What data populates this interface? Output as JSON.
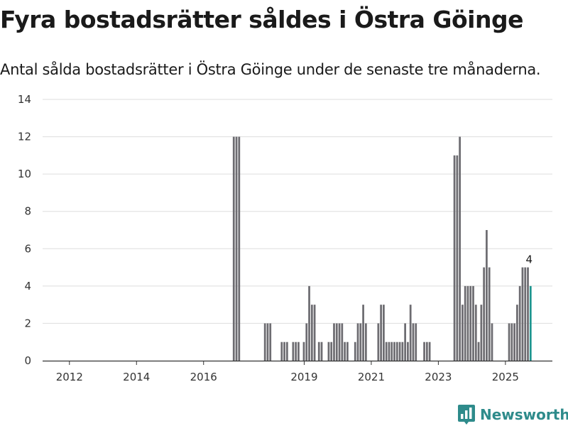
{
  "header": {
    "title": "Fyra bostadsrätter såldes i Östra Göinge",
    "subtitle": "Antal sålda bostadsrätter i Östra Göinge under de senaste tre månaderna."
  },
  "brand": {
    "name": "Newsworthy",
    "color": "#2e8b8b",
    "icon": "bar-chart-icon"
  },
  "chart_data": {
    "type": "bar",
    "title": "Fyra bostadsrätter såldes i Östra Göinge",
    "subtitle": "Antal sålda bostadsrätter i Östra Göinge under de senaste tre månaderna.",
    "xlabel": "",
    "ylabel": "",
    "ylim": [
      0,
      14
    ],
    "yticks": [
      0,
      2,
      4,
      6,
      8,
      10,
      12,
      14
    ],
    "xlim": [
      2011.2,
      2026.4
    ],
    "xticks": [
      {
        "value": 2012,
        "label": "2012"
      },
      {
        "value": 2014,
        "label": "2014"
      },
      {
        "value": 2016,
        "label": "2016"
      },
      {
        "value": 2019,
        "label": "2019"
      },
      {
        "value": 2021,
        "label": "2021"
      },
      {
        "value": 2023,
        "label": "2023"
      },
      {
        "value": 2025,
        "label": "2025"
      }
    ],
    "bar_width": 0.075,
    "colors": {
      "default": "#6d6c71",
      "highlight": "#1e9690"
    },
    "grid": true,
    "highlight_label": "4",
    "series": [
      {
        "name": "Antal sålda bostadsrätter",
        "x": [
          2016.9,
          2016.98,
          2017.06,
          2017.83,
          2017.91,
          2017.99,
          2018.33,
          2018.41,
          2018.49,
          2018.67,
          2018.75,
          2018.83,
          2018.99,
          2019.07,
          2019.15,
          2019.23,
          2019.31,
          2019.44,
          2019.52,
          2019.73,
          2019.81,
          2019.89,
          2019.97,
          2020.05,
          2020.13,
          2020.21,
          2020.29,
          2020.37,
          2020.52,
          2020.6,
          2020.68,
          2020.76,
          2020.84,
          2021.21,
          2021.29,
          2021.37,
          2021.45,
          2021.53,
          2021.61,
          2021.69,
          2021.77,
          2021.85,
          2021.93,
          2022.01,
          2022.09,
          2022.17,
          2022.25,
          2022.33,
          2022.58,
          2022.66,
          2022.74,
          2023.48,
          2023.56,
          2023.64,
          2023.72,
          2023.8,
          2023.88,
          2023.96,
          2024.04,
          2024.12,
          2024.2,
          2024.28,
          2024.36,
          2024.44,
          2024.52,
          2024.6,
          2024.68,
          2025.11,
          2025.19,
          2025.27,
          2025.35,
          2025.43,
          2025.51,
          2025.59,
          2025.67,
          2025.75
        ],
        "values": [
          12,
          12,
          12,
          2,
          2,
          2,
          1,
          1,
          1,
          1,
          1,
          1,
          1,
          2,
          4,
          3,
          3,
          1,
          1,
          1,
          1,
          2,
          2,
          2,
          2,
          1,
          1,
          0,
          1,
          2,
          2,
          3,
          2,
          2,
          3,
          3,
          1,
          1,
          1,
          1,
          1,
          1,
          1,
          2,
          1,
          3,
          2,
          2,
          1,
          1,
          1,
          11,
          11,
          12,
          3,
          4,
          4,
          4,
          4,
          3,
          1,
          3,
          5,
          7,
          5,
          2,
          0,
          2,
          2,
          2,
          3,
          4,
          5,
          5,
          5,
          4
        ]
      }
    ]
  }
}
